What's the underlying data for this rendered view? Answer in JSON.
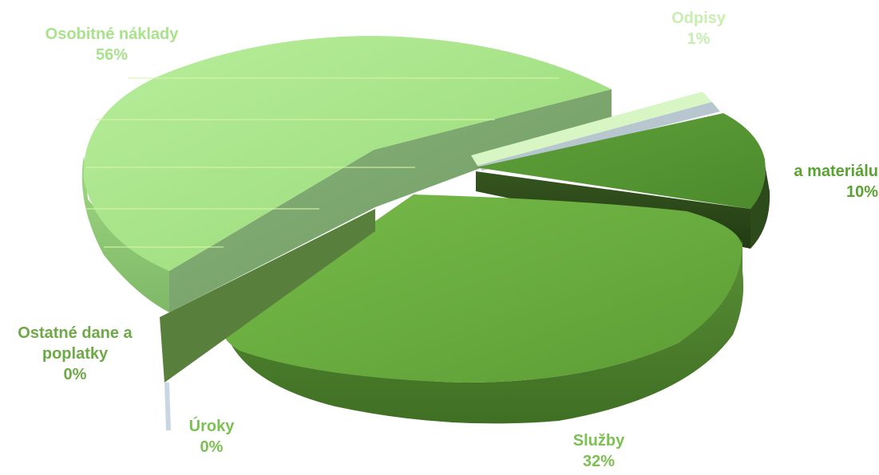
{
  "chart_data": {
    "type": "pie",
    "style": "3d-exploded",
    "title": "",
    "slices": [
      {
        "label": "Osobitné náklady",
        "value_text": "56%",
        "value": 56,
        "color": "#a8e38c"
      },
      {
        "label": "Odpisy",
        "value_text": "1%",
        "value": 1,
        "color": "#c8efb4"
      },
      {
        "label": "",
        "value_text": "",
        "value": 1,
        "color": "#b9c7cf"
      },
      {
        "label": "...a materiálu",
        "value_text": "10%",
        "value": 10,
        "color": "#5a9a36"
      },
      {
        "label": "Služby",
        "value_text": "32%",
        "value": 32,
        "color": "#6eb043"
      },
      {
        "label": "Úroky",
        "value_text": "0%",
        "value": 0,
        "color": "#c9d7e3"
      },
      {
        "label": "Ostatné dane a poplatky",
        "value_text": "0%",
        "value": 0,
        "color": "#5f8e40"
      }
    ],
    "labels": {
      "osobitne": {
        "name": "Osobitné náklady",
        "pct": "56%"
      },
      "odpisy": {
        "name": "Odpisy",
        "pct": "1%"
      },
      "material": {
        "name": "a materiálu",
        "pct": "10%"
      },
      "sluzby": {
        "name": "Služby",
        "pct": "32%"
      },
      "ostatne": {
        "name_line1": "Ostatné dane a",
        "name_line2": "poplatky",
        "pct": "0%"
      },
      "uroky": {
        "name": "Úroky",
        "pct": "0%"
      }
    },
    "colors": {
      "label_light": "#a8e38c",
      "label_dark": "#5aa332",
      "label_mid": "#7cc052"
    }
  }
}
